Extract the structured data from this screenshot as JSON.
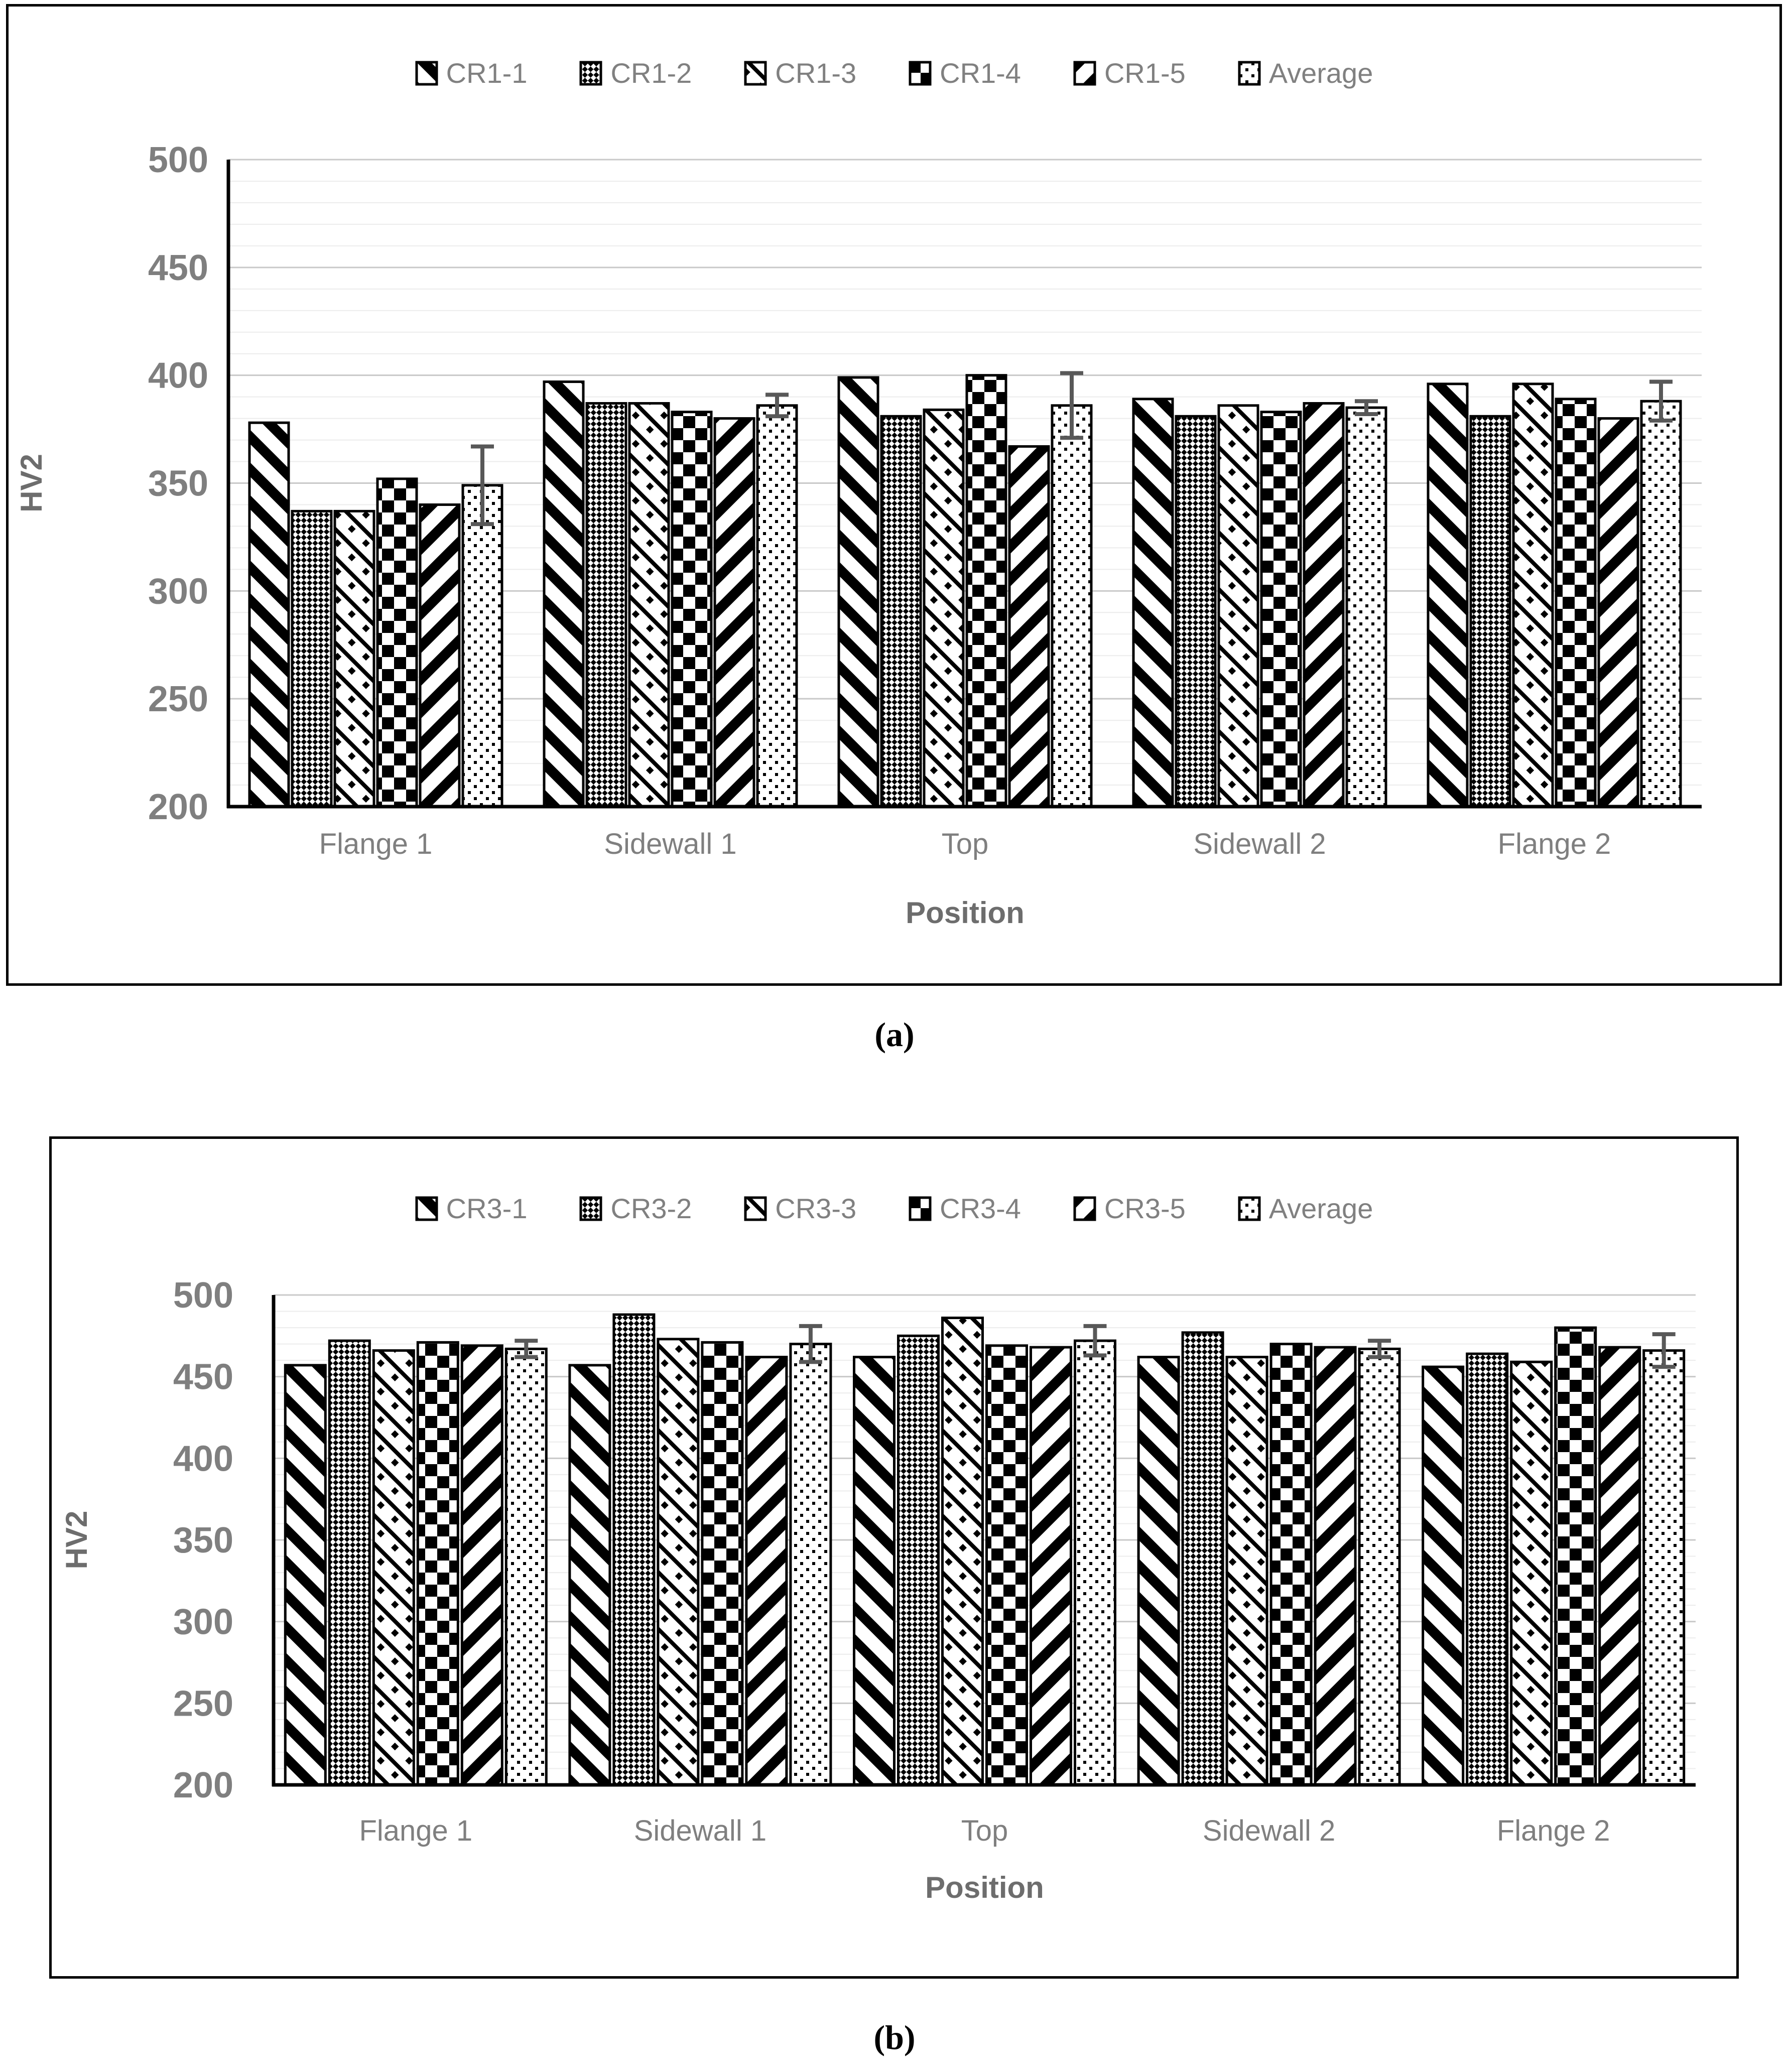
{
  "captions": {
    "a": "(a)",
    "b": "(b)"
  },
  "chart_data": [
    {
      "type": "bar",
      "title": "",
      "xlabel": "Position",
      "ylabel": "HV2",
      "ylim": [
        200,
        500
      ],
      "yticks": [
        200,
        250,
        300,
        350,
        400,
        450,
        500
      ],
      "gridline_minor_step": 10,
      "gridline_major_step": 50,
      "legend_position": "top",
      "categories": [
        "Flange 1",
        "Sidewall 1",
        "Top",
        "Sidewall 2",
        "Flange 2"
      ],
      "series": [
        {
          "name": "CR1-1",
          "pattern": "diag-down-bold",
          "values": [
            378,
            397,
            399,
            389,
            396
          ]
        },
        {
          "name": "CR1-2",
          "pattern": "fine-checker",
          "values": [
            337,
            387,
            381,
            381,
            381
          ]
        },
        {
          "name": "CR1-3",
          "pattern": "diag-down-dash",
          "values": [
            337,
            387,
            384,
            386,
            396
          ]
        },
        {
          "name": "CR1-4",
          "pattern": "checkerboard",
          "values": [
            352,
            383,
            400,
            383,
            389
          ]
        },
        {
          "name": "CR1-5",
          "pattern": "diag-up-bold",
          "values": [
            340,
            380,
            367,
            387,
            380
          ]
        },
        {
          "name": "Average",
          "pattern": "dots",
          "values": [
            349,
            386,
            386,
            385,
            388
          ],
          "error": [
            18,
            5,
            15,
            3,
            9
          ]
        }
      ]
    },
    {
      "type": "bar",
      "title": "",
      "xlabel": "Position",
      "ylabel": "HV2",
      "ylim": [
        200,
        500
      ],
      "yticks": [
        200,
        250,
        300,
        350,
        400,
        450,
        500
      ],
      "gridline_minor_step": 10,
      "gridline_major_step": 50,
      "legend_position": "top",
      "categories": [
        "Flange 1",
        "Sidewall 1",
        "Top",
        "Sidewall 2",
        "Flange 2"
      ],
      "series": [
        {
          "name": "CR3-1",
          "pattern": "diag-down-bold",
          "values": [
            457,
            457,
            462,
            462,
            456
          ]
        },
        {
          "name": "CR3-2",
          "pattern": "fine-checker",
          "values": [
            472,
            488,
            475,
            477,
            464
          ]
        },
        {
          "name": "CR3-3",
          "pattern": "diag-down-dash",
          "values": [
            466,
            473,
            486,
            462,
            459
          ]
        },
        {
          "name": "CR3-4",
          "pattern": "checkerboard",
          "values": [
            471,
            471,
            469,
            470,
            480
          ]
        },
        {
          "name": "CR3-5",
          "pattern": "diag-up-bold",
          "values": [
            469,
            462,
            468,
            468,
            468
          ]
        },
        {
          "name": "Average",
          "pattern": "dots",
          "values": [
            467,
            470,
            472,
            467,
            466
          ],
          "error": [
            5,
            11,
            9,
            5,
            10
          ]
        }
      ]
    }
  ],
  "colors": {
    "bar_fill_bg": "#ffffff",
    "bar_stroke": "#000000",
    "axis_line": "#000000",
    "gridline_minor": "#ececec",
    "gridline_major": "#c9c9c9",
    "tick_text": "#7f7f7f",
    "axis_title_text": "#6d6d6d",
    "legend_text": "#808080",
    "error_bar": "#585858"
  }
}
